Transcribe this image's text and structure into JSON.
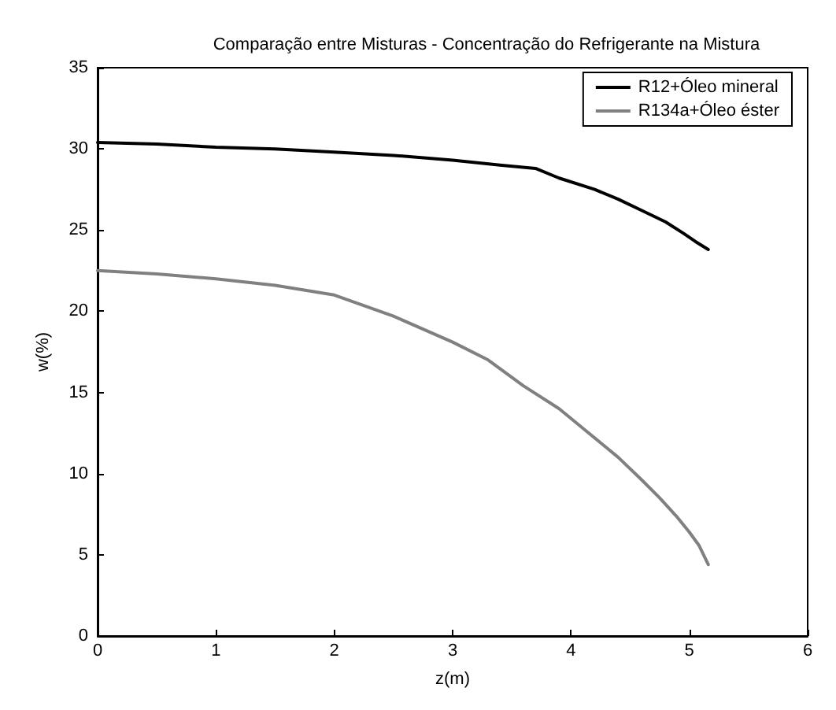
{
  "chart_data": {
    "type": "line",
    "title": "Comparação entre Misturas - Concentração do Refrigerante na Mistura",
    "xlabel": "z(m)",
    "ylabel": "w(%)",
    "xlim": [
      0,
      6
    ],
    "xticks": [
      0,
      1,
      2,
      3,
      4,
      5,
      6
    ],
    "ylim": [
      0,
      35
    ],
    "yticks": [
      0,
      5,
      10,
      15,
      20,
      25,
      30,
      35
    ],
    "grid": false,
    "legend": "top right",
    "marker": "none",
    "line_style": "solid",
    "series": [
      {
        "name": "R12+Óleo mineral",
        "color": "#000000",
        "x": [
          0,
          0.5,
          1,
          1.5,
          2,
          2.5,
          3,
          3.4,
          3.7,
          3.9,
          4.2,
          4.4,
          4.6,
          4.8,
          4.95,
          5.05,
          5.16
        ],
        "values": [
          30.4,
          30.3,
          30.1,
          30.0,
          29.8,
          29.6,
          29.3,
          29.0,
          28.8,
          28.2,
          27.5,
          26.9,
          26.2,
          25.5,
          24.8,
          24.3,
          23.8
        ]
      },
      {
        "name": "R134a+Óleo éster",
        "color": "#808080",
        "x": [
          0,
          0.5,
          1,
          1.5,
          2,
          2.5,
          3,
          3.3,
          3.6,
          3.9,
          4.1,
          4.4,
          4.6,
          4.75,
          4.9,
          5.0,
          5.08,
          5.16
        ],
        "values": [
          22.5,
          22.3,
          22.0,
          21.6,
          21.0,
          19.7,
          18.1,
          17.0,
          15.4,
          14.0,
          12.8,
          11.0,
          9.6,
          8.5,
          7.3,
          6.4,
          5.6,
          4.4
        ]
      }
    ]
  }
}
